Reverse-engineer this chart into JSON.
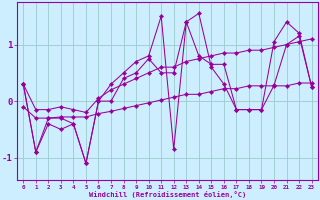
{
  "xlabel": "Windchill (Refroidissement éolien,°C)",
  "x_values": [
    0,
    1,
    2,
    3,
    4,
    5,
    6,
    7,
    8,
    9,
    10,
    11,
    12,
    13,
    14,
    15,
    16,
    17,
    18,
    19,
    20,
    21,
    22,
    23
  ],
  "y_main": [
    0.3,
    -0.9,
    -0.4,
    -0.5,
    -0.4,
    -1.1,
    0.0,
    0.3,
    0.5,
    0.7,
    0.8,
    1.5,
    -0.85,
    1.4,
    1.55,
    0.6,
    0.3,
    -0.15,
    -0.15,
    -0.15,
    1.05,
    1.4,
    1.2,
    0.25
  ],
  "y_upper": [
    0.3,
    -0.15,
    -0.15,
    -0.1,
    -0.15,
    -0.2,
    0.05,
    0.2,
    0.3,
    0.4,
    0.5,
    0.6,
    0.6,
    0.7,
    0.75,
    0.8,
    0.85,
    0.85,
    0.9,
    0.9,
    0.95,
    1.0,
    1.05,
    1.1
  ],
  "y_lower": [
    -0.1,
    -0.3,
    -0.3,
    -0.28,
    -0.28,
    -0.28,
    -0.22,
    -0.18,
    -0.13,
    -0.08,
    -0.03,
    0.02,
    0.07,
    0.12,
    0.12,
    0.17,
    0.22,
    0.22,
    0.27,
    0.27,
    0.27,
    0.27,
    0.32,
    0.32
  ],
  "y_jagged2": [
    0.3,
    -0.9,
    -0.3,
    -0.3,
    -0.4,
    -1.1,
    0.0,
    0.0,
    0.4,
    0.5,
    0.75,
    0.5,
    0.5,
    1.4,
    0.8,
    0.65,
    0.65,
    -0.15,
    -0.15,
    -0.15,
    0.28,
    1.0,
    1.15,
    0.25
  ],
  "line_color": "#990099",
  "bg_color": "#cceeff",
  "grid_color": "#99cccc",
  "ylim": [
    -1.4,
    1.75
  ],
  "yticks": [
    -1,
    0,
    1
  ],
  "marker": "D",
  "marker_size": 2.2,
  "linewidth": 0.75
}
